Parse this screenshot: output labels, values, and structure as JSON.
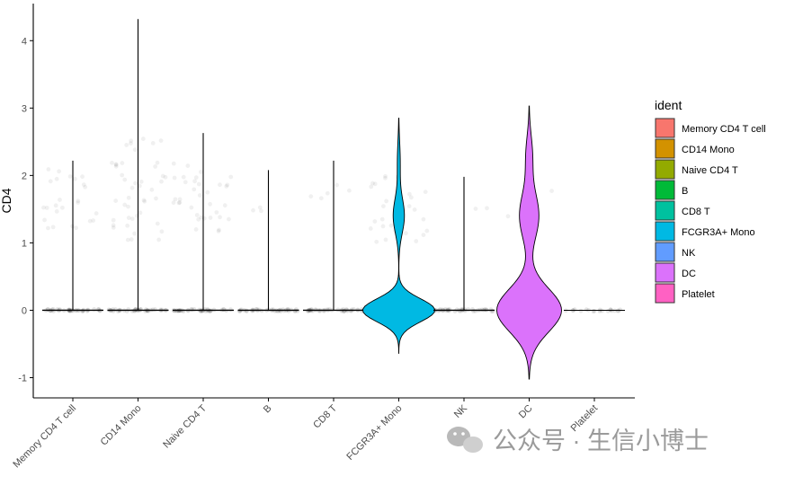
{
  "chart_data": {
    "type": "violin",
    "ylabel": "CD4",
    "xlabel": "",
    "ylim": [
      -1.3,
      4.55
    ],
    "y_ticks": [
      -1,
      0,
      1,
      2,
      3,
      4
    ],
    "categories": [
      "Memory CD4 T cell",
      "CD14 Mono",
      "Naive CD4 T",
      "B",
      "CD8 T",
      "FCGR3A+ Mono",
      "NK",
      "DC",
      "Platelet"
    ],
    "colors": [
      "#F8766D",
      "#D39200",
      "#93AA00",
      "#00BA38",
      "#00C19F",
      "#00B9E3",
      "#619CFF",
      "#DB72FB",
      "#FF61C3"
    ],
    "violins": [
      {
        "category": "Memory CD4 T cell",
        "min": 0,
        "max": 2.22
      },
      {
        "category": "CD14 Mono",
        "min": 0,
        "max": 4.32
      },
      {
        "category": "Naive CD4 T",
        "min": 0,
        "max": 2.63
      },
      {
        "category": "B",
        "min": 0,
        "max": 2.08
      },
      {
        "category": "CD8 T",
        "min": 0,
        "max": 2.22
      },
      {
        "category": "FCGR3A+ Mono",
        "min": -0.64,
        "max": 2.85
      },
      {
        "category": "NK",
        "min": 0,
        "max": 1.98
      },
      {
        "category": "DC",
        "min": -1.02,
        "max": 3.03
      },
      {
        "category": "Platelet",
        "min": 0,
        "max": 0
      }
    ],
    "legend": {
      "title": "ident",
      "placement": "right",
      "entries": [
        "Memory CD4 T cell",
        "CD14 Mono",
        "Naive CD4 T",
        "B",
        "CD8 T",
        "FCGR3A+ Mono",
        "NK",
        "DC",
        "Platelet"
      ]
    }
  },
  "watermark": {
    "text": "公众号 · 生信小博士"
  }
}
